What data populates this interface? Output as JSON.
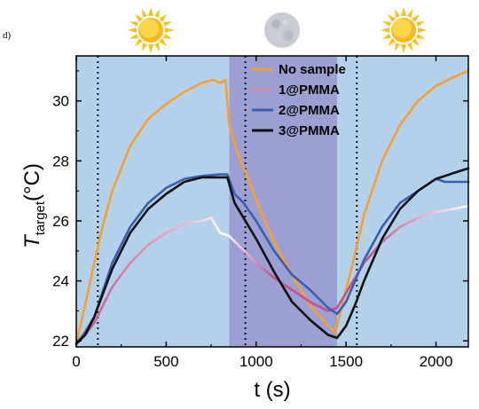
{
  "panel_label": "d)",
  "top_icons": [
    "sun-icon",
    "moon-icon",
    "sun-icon"
  ],
  "chart_data": {
    "type": "line",
    "title": "",
    "xlabel": "t (s)",
    "ylabel": "T_target(°C)",
    "ylabel_main": "T",
    "ylabel_sub": "target",
    "ylabel_unit": "(°C)",
    "xlim": [
      0,
      2180
    ],
    "ylim": [
      21.8,
      31.5
    ],
    "xticks": [
      0,
      500,
      1000,
      1500,
      2000
    ],
    "yticks": [
      22,
      24,
      26,
      28,
      30
    ],
    "grid": false,
    "legend_position": "top-right",
    "regions": [
      {
        "name": "day",
        "x0": 0,
        "x1": 850,
        "color": "#b3d1ea"
      },
      {
        "name": "night",
        "x0": 850,
        "x1": 1450,
        "color": "#9b9fd2"
      },
      {
        "name": "day",
        "x0": 1450,
        "x1": 2180,
        "color": "#b3d1ea"
      }
    ],
    "vlines": [
      120,
      940,
      1560
    ],
    "series": [
      {
        "name": "No sample",
        "color": "#f5a030",
        "x": [
          0,
          50,
          100,
          150,
          200,
          300,
          400,
          500,
          600,
          700,
          760,
          800,
          830,
          850,
          900,
          950,
          1000,
          1100,
          1200,
          1300,
          1400,
          1440,
          1450,
          1500,
          1550,
          1600,
          1700,
          1800,
          1900,
          2000,
          2100,
          2180
        ],
        "y": [
          21.9,
          23.2,
          24.6,
          25.9,
          27.0,
          28.5,
          29.4,
          29.9,
          30.3,
          30.6,
          30.7,
          30.6,
          30.7,
          29.2,
          28.2,
          27.5,
          26.7,
          25.3,
          24.2,
          23.2,
          22.5,
          22.3,
          22.5,
          23.7,
          24.9,
          26.2,
          28.0,
          29.2,
          30.0,
          30.5,
          30.8,
          31.0
        ]
      },
      {
        "name": "1@PMMA",
        "color_start": "#c8508a",
        "color_peak": "#ffffff",
        "color": "#c8508a",
        "x": [
          0,
          50,
          100,
          150,
          200,
          300,
          400,
          500,
          600,
          700,
          750,
          800,
          850,
          900,
          950,
          1000,
          1100,
          1200,
          1300,
          1400,
          1450,
          1500,
          1550,
          1600,
          1700,
          1800,
          1900,
          2000,
          2100,
          2180
        ],
        "y": [
          21.9,
          22.2,
          22.6,
          23.2,
          23.8,
          24.6,
          25.2,
          25.6,
          25.9,
          26.0,
          26.1,
          25.6,
          25.5,
          25.2,
          24.9,
          24.6,
          24.1,
          23.7,
          23.3,
          23.0,
          23.1,
          23.6,
          24.1,
          24.6,
          25.3,
          25.8,
          26.1,
          26.3,
          26.4,
          26.5
        ]
      },
      {
        "name": "2@PMMA",
        "color": "#3a5fb0",
        "x": [
          0,
          50,
          100,
          150,
          200,
          300,
          400,
          500,
          600,
          700,
          800,
          840,
          880,
          930,
          1000,
          1100,
          1200,
          1300,
          1400,
          1450,
          1500,
          1550,
          1600,
          1700,
          1800,
          1900,
          2000,
          2050,
          2100,
          2180
        ],
        "y": [
          21.9,
          22.3,
          22.8,
          23.7,
          24.6,
          25.8,
          26.6,
          27.1,
          27.4,
          27.5,
          27.55,
          27.55,
          26.9,
          26.6,
          26.0,
          25.0,
          24.2,
          23.7,
          23.1,
          22.9,
          23.3,
          24.0,
          24.7,
          25.8,
          26.6,
          27.0,
          27.4,
          27.3,
          27.3,
          27.3
        ]
      },
      {
        "name": "3@PMMA",
        "color": "#111111",
        "x": [
          0,
          50,
          100,
          150,
          200,
          300,
          400,
          500,
          600,
          700,
          800,
          840,
          880,
          930,
          1000,
          1100,
          1200,
          1300,
          1400,
          1450,
          1500,
          1550,
          1600,
          1700,
          1800,
          1900,
          2000,
          2100,
          2180
        ],
        "y": [
          21.9,
          22.2,
          22.8,
          23.6,
          24.4,
          25.6,
          26.4,
          26.9,
          27.3,
          27.45,
          27.45,
          27.45,
          26.6,
          26.1,
          25.4,
          24.3,
          23.3,
          22.7,
          22.2,
          22.1,
          22.5,
          23.2,
          24.0,
          25.4,
          26.4,
          27.0,
          27.4,
          27.6,
          27.75
        ]
      }
    ]
  }
}
